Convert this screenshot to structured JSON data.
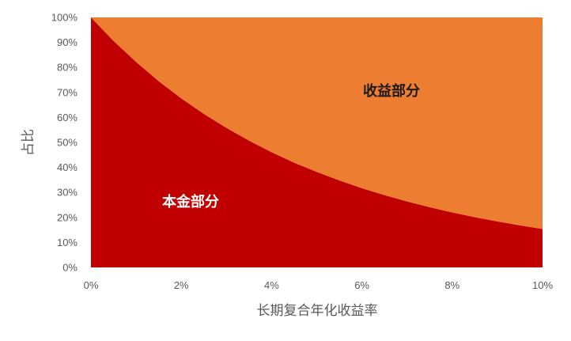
{
  "chart_data": {
    "type": "area",
    "stacked": true,
    "x": [
      0,
      0.5,
      1,
      1.5,
      2,
      2.5,
      3,
      3.5,
      4,
      4.5,
      5,
      5.5,
      6,
      6.5,
      7,
      7.5,
      8,
      8.5,
      9,
      9.5,
      10
    ],
    "series": [
      {
        "name": "本金部分",
        "color": "#C00000",
        "values": [
          100,
          90.6,
          82.2,
          74.5,
          67.6,
          61.4,
          55.8,
          50.7,
          46.1,
          41.9,
          38.2,
          34.8,
          31.7,
          28.9,
          26.4,
          24.1,
          22.0,
          20.1,
          18.4,
          16.8,
          15.4
        ]
      },
      {
        "name": "收益部分",
        "color": "#ED7D31",
        "values": [
          0,
          9.4,
          17.8,
          25.5,
          32.4,
          38.6,
          44.2,
          49.3,
          53.9,
          58.1,
          61.8,
          65.2,
          68.3,
          71.1,
          73.6,
          75.9,
          78.0,
          79.9,
          81.6,
          83.2,
          84.6
        ]
      }
    ],
    "x_tick_labels": [
      "0%",
      "2%",
      "4%",
      "6%",
      "8%",
      "10%"
    ],
    "y_tick_labels": [
      "0%",
      "10%",
      "20%",
      "30%",
      "40%",
      "50%",
      "60%",
      "70%",
      "80%",
      "90%",
      "100%"
    ],
    "xlabel": "长期复合年化收益率",
    "ylabel": "占比",
    "xlim": [
      0,
      10
    ],
    "ylim": [
      0,
      100
    ],
    "grid": false,
    "legend": "none"
  }
}
